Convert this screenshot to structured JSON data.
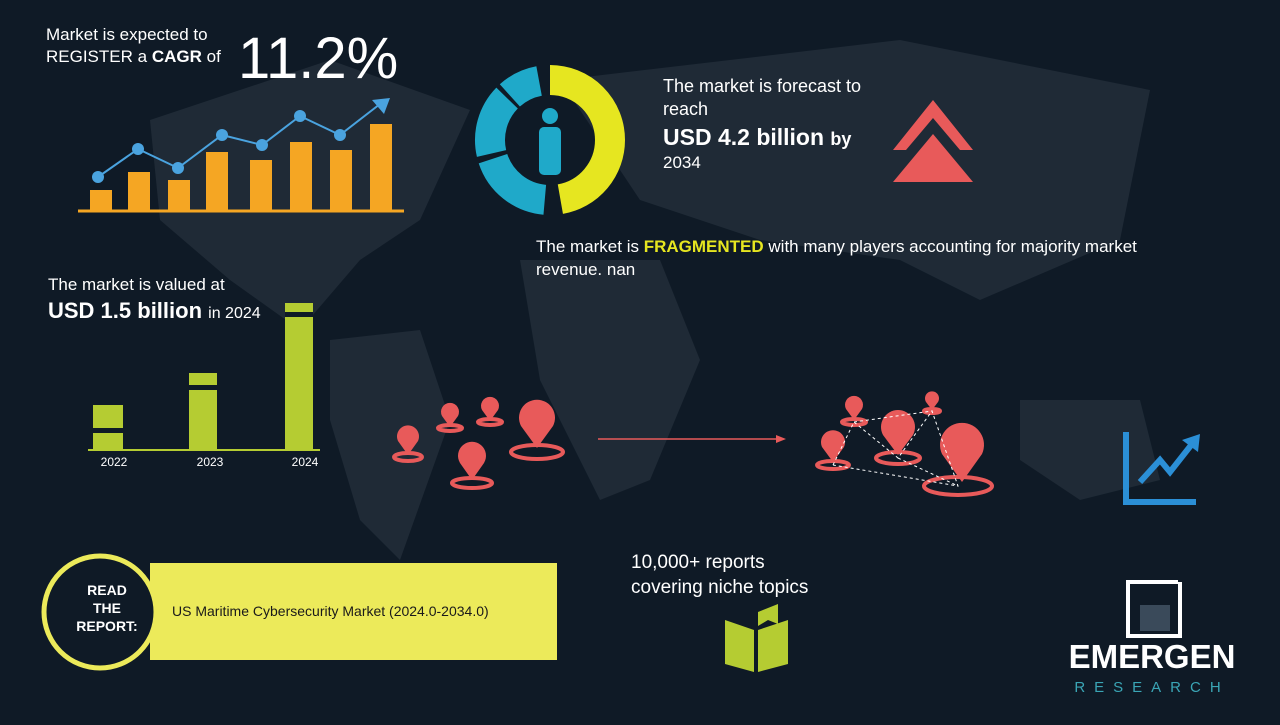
{
  "cagr": {
    "line1": "Market is expected to",
    "line2": "REGISTER a",
    "bold": "CAGR",
    "of": "of",
    "value": "11.2%"
  },
  "forecast": {
    "line1": "The market is forecast to",
    "line2": "reach",
    "amount": "USD 4.2 billion",
    "by": "by",
    "year": "2034"
  },
  "fragmented": {
    "prefix": "The market is",
    "highlight": "FRAGMENTED",
    "suffix": "with many players accounting for majority market",
    "line2": "revenue. nan"
  },
  "valued": {
    "line1": "The market is valued at",
    "amount": "USD 1.5 billion",
    "suffix": "in 2024",
    "years": [
      "2022",
      "2023",
      "2024"
    ]
  },
  "reports": {
    "line1": "10,000+ reports",
    "line2": "covering niche topics"
  },
  "read_report": {
    "label": [
      "READ",
      "THE",
      "REPORT:"
    ],
    "title": "US Maritime Cybersecurity Market (2024.0-2034.0)"
  },
  "logo": {
    "name": "EMERGEN",
    "sub": "RESEARCH"
  }
}
